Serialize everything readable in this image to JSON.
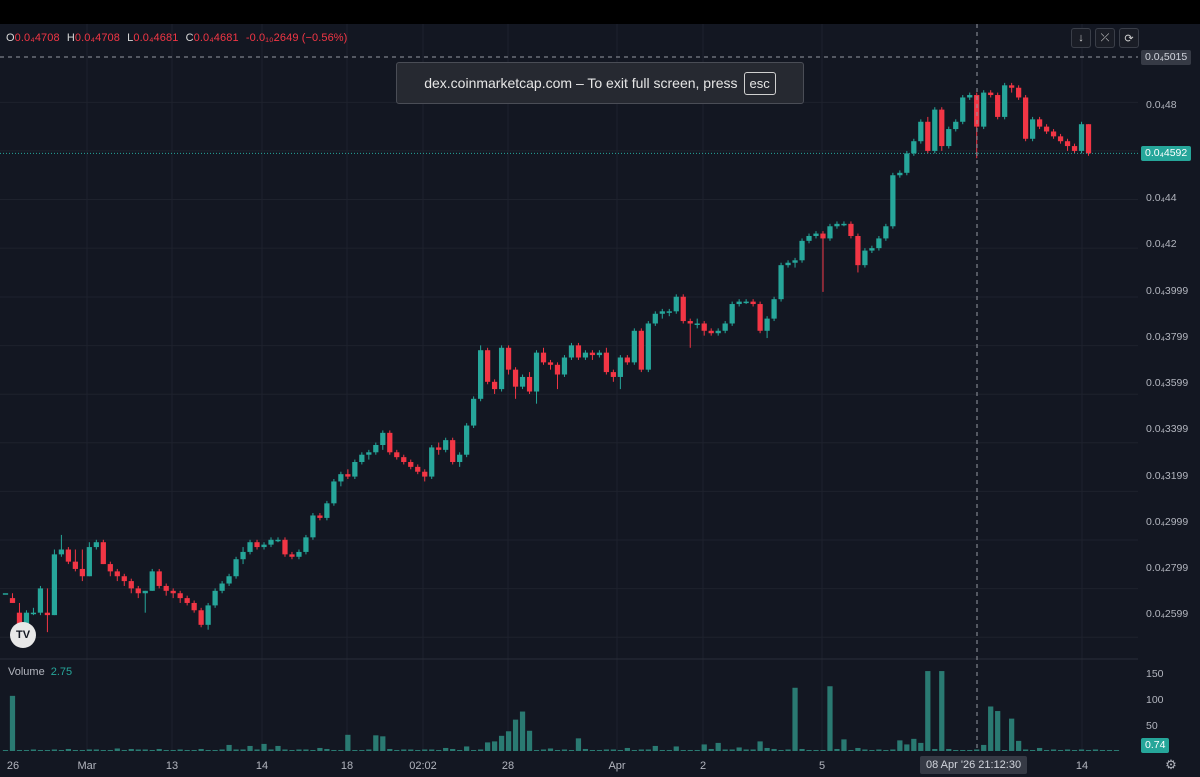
{
  "ohlc": {
    "o_label": "O",
    "o_value": "0.0₄4708",
    "h_label": "H",
    "h_value": "0.0₄4708",
    "l_label": "L",
    "l_value": "0.0₄4681",
    "c_label": "C",
    "c_value": "0.0₄4681",
    "change": "-0.0₁₀2649 (−0.56%)"
  },
  "toast": {
    "text": "dex.coinmarketcap.com – To exit full screen, press",
    "key": "esc"
  },
  "controls": {
    "down": "↓",
    "collapse": "⤫",
    "reset": "⟳"
  },
  "price_axis": {
    "labels": [
      "0.0₄48",
      "0.0₄46",
      "0.0₄44",
      "0.0₄42",
      "0.0₄3999",
      "0.0₄3799",
      "0.0₄3599",
      "0.0₄3399",
      "0.0₄3199",
      "0.0₄2999",
      "0.0₄2799",
      "0.0₄2599"
    ],
    "crosshair_price": "0.0₄5015",
    "last_price": "0.0₄4592"
  },
  "time_axis": {
    "labels": [
      "26",
      "Mar",
      "13",
      "14",
      "18",
      "02:02",
      "28",
      "Apr",
      "2",
      "5",
      "14"
    ],
    "crosshair_time": "08 Apr '26   21:12:30"
  },
  "volume": {
    "label": "Volume",
    "value": "2.75",
    "axis": [
      "150",
      "100",
      "50"
    ],
    "last": "0.74"
  },
  "colors": {
    "up": "#26a69a",
    "down": "#f23645",
    "bg": "#131722",
    "grid": "#1e222d",
    "volume": "#2a7a72"
  },
  "chart_data": {
    "type": "candlestick",
    "title": "",
    "ylim": [
      0.253,
      0.504
    ],
    "y_scale_note": "values in units of 0.0001 (display uses 0.0₄ subscript notation)",
    "candles": [
      [
        0.278,
        0.278,
        0.278,
        0.278
      ],
      [
        0.276,
        0.278,
        0.274,
        0.274
      ],
      [
        0.27,
        0.274,
        0.262,
        0.265
      ],
      [
        0.265,
        0.271,
        0.264,
        0.27
      ],
      [
        0.27,
        0.272,
        0.269,
        0.27
      ],
      [
        0.27,
        0.281,
        0.269,
        0.28
      ],
      [
        0.27,
        0.28,
        0.262,
        0.269
      ],
      [
        0.269,
        0.296,
        0.269,
        0.294
      ],
      [
        0.294,
        0.302,
        0.293,
        0.296
      ],
      [
        0.296,
        0.297,
        0.29,
        0.291
      ],
      [
        0.291,
        0.296,
        0.287,
        0.288
      ],
      [
        0.288,
        0.296,
        0.283,
        0.285
      ],
      [
        0.285,
        0.299,
        0.285,
        0.297
      ],
      [
        0.297,
        0.3,
        0.296,
        0.299
      ],
      [
        0.299,
        0.3,
        0.29,
        0.29
      ],
      [
        0.29,
        0.291,
        0.285,
        0.287
      ],
      [
        0.287,
        0.288,
        0.283,
        0.285
      ],
      [
        0.285,
        0.286,
        0.281,
        0.283
      ],
      [
        0.283,
        0.284,
        0.278,
        0.28
      ],
      [
        0.28,
        0.281,
        0.276,
        0.278
      ],
      [
        0.278,
        0.279,
        0.27,
        0.279
      ],
      [
        0.279,
        0.288,
        0.279,
        0.287
      ],
      [
        0.287,
        0.288,
        0.28,
        0.281
      ],
      [
        0.281,
        0.282,
        0.277,
        0.279
      ],
      [
        0.279,
        0.28,
        0.276,
        0.278
      ],
      [
        0.278,
        0.279,
        0.274,
        0.276
      ],
      [
        0.276,
        0.277,
        0.273,
        0.274
      ],
      [
        0.274,
        0.275,
        0.27,
        0.271
      ],
      [
        0.271,
        0.272,
        0.264,
        0.265
      ],
      [
        0.265,
        0.274,
        0.263,
        0.273
      ],
      [
        0.273,
        0.28,
        0.272,
        0.279
      ],
      [
        0.279,
        0.283,
        0.278,
        0.282
      ],
      [
        0.282,
        0.286,
        0.281,
        0.285
      ],
      [
        0.285,
        0.293,
        0.284,
        0.292
      ],
      [
        0.292,
        0.297,
        0.29,
        0.295
      ],
      [
        0.295,
        0.3,
        0.294,
        0.299
      ],
      [
        0.299,
        0.3,
        0.296,
        0.297
      ],
      [
        0.297,
        0.299,
        0.296,
        0.298
      ],
      [
        0.298,
        0.301,
        0.297,
        0.3
      ],
      [
        0.3,
        0.301,
        0.299,
        0.3
      ],
      [
        0.3,
        0.301,
        0.293,
        0.294
      ],
      [
        0.294,
        0.295,
        0.292,
        0.293
      ],
      [
        0.293,
        0.296,
        0.292,
        0.295
      ],
      [
        0.295,
        0.302,
        0.294,
        0.301
      ],
      [
        0.301,
        0.311,
        0.3,
        0.31
      ],
      [
        0.31,
        0.311,
        0.308,
        0.309
      ],
      [
        0.309,
        0.316,
        0.308,
        0.315
      ],
      [
        0.315,
        0.325,
        0.314,
        0.324
      ],
      [
        0.324,
        0.328,
        0.322,
        0.327
      ],
      [
        0.327,
        0.329,
        0.325,
        0.326
      ],
      [
        0.326,
        0.333,
        0.325,
        0.332
      ],
      [
        0.332,
        0.336,
        0.331,
        0.335
      ],
      [
        0.335,
        0.337,
        0.333,
        0.336
      ],
      [
        0.336,
        0.34,
        0.335,
        0.339
      ],
      [
        0.339,
        0.345,
        0.337,
        0.344
      ],
      [
        0.344,
        0.345,
        0.335,
        0.336
      ],
      [
        0.336,
        0.337,
        0.333,
        0.334
      ],
      [
        0.334,
        0.335,
        0.331,
        0.332
      ],
      [
        0.332,
        0.333,
        0.329,
        0.33
      ],
      [
        0.33,
        0.331,
        0.327,
        0.328
      ],
      [
        0.328,
        0.329,
        0.324,
        0.326
      ],
      [
        0.326,
        0.339,
        0.325,
        0.338
      ],
      [
        0.338,
        0.34,
        0.335,
        0.337
      ],
      [
        0.337,
        0.342,
        0.336,
        0.341
      ],
      [
        0.341,
        0.342,
        0.331,
        0.332
      ],
      [
        0.332,
        0.336,
        0.33,
        0.335
      ],
      [
        0.335,
        0.348,
        0.334,
        0.347
      ],
      [
        0.347,
        0.359,
        0.346,
        0.358
      ],
      [
        0.358,
        0.38,
        0.357,
        0.378
      ],
      [
        0.378,
        0.379,
        0.364,
        0.365
      ],
      [
        0.365,
        0.366,
        0.36,
        0.362
      ],
      [
        0.362,
        0.38,
        0.361,
        0.379
      ],
      [
        0.379,
        0.38,
        0.368,
        0.37
      ],
      [
        0.37,
        0.371,
        0.358,
        0.363
      ],
      [
        0.363,
        0.368,
        0.362,
        0.367
      ],
      [
        0.367,
        0.369,
        0.36,
        0.361
      ],
      [
        0.361,
        0.378,
        0.356,
        0.377
      ],
      [
        0.377,
        0.379,
        0.372,
        0.373
      ],
      [
        0.373,
        0.374,
        0.37,
        0.372
      ],
      [
        0.372,
        0.373,
        0.362,
        0.368
      ],
      [
        0.368,
        0.376,
        0.367,
        0.375
      ],
      [
        0.375,
        0.381,
        0.374,
        0.38
      ],
      [
        0.38,
        0.381,
        0.374,
        0.375
      ],
      [
        0.375,
        0.378,
        0.374,
        0.377
      ],
      [
        0.377,
        0.378,
        0.374,
        0.376
      ],
      [
        0.376,
        0.378,
        0.375,
        0.377
      ],
      [
        0.377,
        0.379,
        0.368,
        0.369
      ],
      [
        0.369,
        0.37,
        0.365,
        0.367
      ],
      [
        0.367,
        0.376,
        0.362,
        0.375
      ],
      [
        0.375,
        0.376,
        0.372,
        0.373
      ],
      [
        0.373,
        0.387,
        0.372,
        0.386
      ],
      [
        0.386,
        0.387,
        0.369,
        0.37
      ],
      [
        0.37,
        0.39,
        0.369,
        0.389
      ],
      [
        0.389,
        0.394,
        0.388,
        0.393
      ],
      [
        0.393,
        0.395,
        0.391,
        0.394
      ],
      [
        0.394,
        0.395,
        0.392,
        0.394
      ],
      [
        0.394,
        0.401,
        0.393,
        0.4
      ],
      [
        0.4,
        0.401,
        0.389,
        0.39
      ],
      [
        0.39,
        0.391,
        0.379,
        0.389
      ],
      [
        0.389,
        0.391,
        0.387,
        0.389
      ],
      [
        0.389,
        0.39,
        0.384,
        0.386
      ],
      [
        0.386,
        0.387,
        0.384,
        0.385
      ],
      [
        0.385,
        0.387,
        0.384,
        0.386
      ],
      [
        0.386,
        0.39,
        0.385,
        0.389
      ],
      [
        0.389,
        0.398,
        0.388,
        0.397
      ],
      [
        0.397,
        0.399,
        0.396,
        0.398
      ],
      [
        0.398,
        0.399,
        0.397,
        0.398
      ],
      [
        0.398,
        0.399,
        0.396,
        0.397
      ],
      [
        0.397,
        0.398,
        0.385,
        0.386
      ],
      [
        0.386,
        0.392,
        0.383,
        0.391
      ],
      [
        0.391,
        0.4,
        0.39,
        0.399
      ],
      [
        0.399,
        0.414,
        0.398,
        0.413
      ],
      [
        0.413,
        0.415,
        0.412,
        0.414
      ],
      [
        0.414,
        0.416,
        0.412,
        0.415
      ],
      [
        0.415,
        0.424,
        0.414,
        0.423
      ],
      [
        0.423,
        0.426,
        0.422,
        0.425
      ],
      [
        0.425,
        0.427,
        0.424,
        0.426
      ],
      [
        0.426,
        0.427,
        0.402,
        0.424
      ],
      [
        0.424,
        0.43,
        0.423,
        0.429
      ],
      [
        0.429,
        0.431,
        0.428,
        0.43
      ],
      [
        0.43,
        0.431,
        0.429,
        0.43
      ],
      [
        0.43,
        0.431,
        0.424,
        0.425
      ],
      [
        0.425,
        0.426,
        0.41,
        0.413
      ],
      [
        0.413,
        0.42,
        0.412,
        0.419
      ],
      [
        0.419,
        0.421,
        0.418,
        0.42
      ],
      [
        0.42,
        0.425,
        0.419,
        0.424
      ],
      [
        0.424,
        0.43,
        0.423,
        0.429
      ],
      [
        0.429,
        0.451,
        0.428,
        0.45
      ],
      [
        0.45,
        0.452,
        0.449,
        0.451
      ],
      [
        0.451,
        0.46,
        0.45,
        0.459
      ],
      [
        0.459,
        0.465,
        0.458,
        0.464
      ],
      [
        0.464,
        0.473,
        0.463,
        0.472
      ],
      [
        0.472,
        0.474,
        0.459,
        0.46
      ],
      [
        0.46,
        0.478,
        0.459,
        0.477
      ],
      [
        0.477,
        0.478,
        0.46,
        0.462
      ],
      [
        0.462,
        0.47,
        0.461,
        0.469
      ],
      [
        0.469,
        0.473,
        0.468,
        0.472
      ],
      [
        0.472,
        0.483,
        0.471,
        0.482
      ],
      [
        0.482,
        0.484,
        0.481,
        0.483
      ],
      [
        0.483,
        0.484,
        0.457,
        0.47
      ],
      [
        0.47,
        0.485,
        0.469,
        0.484
      ],
      [
        0.484,
        0.485,
        0.482,
        0.483
      ],
      [
        0.483,
        0.484,
        0.473,
        0.474
      ],
      [
        0.474,
        0.488,
        0.473,
        0.487
      ],
      [
        0.487,
        0.488,
        0.484,
        0.486
      ],
      [
        0.486,
        0.487,
        0.481,
        0.482
      ],
      [
        0.482,
        0.483,
        0.464,
        0.465
      ],
      [
        0.465,
        0.474,
        0.464,
        0.473
      ],
      [
        0.473,
        0.474,
        0.469,
        0.47
      ],
      [
        0.47,
        0.471,
        0.467,
        0.468
      ],
      [
        0.468,
        0.469,
        0.465,
        0.466
      ],
      [
        0.466,
        0.467,
        0.463,
        0.464
      ],
      [
        0.464,
        0.465,
        0.46,
        0.462
      ],
      [
        0.462,
        0.463,
        0.459,
        0.46
      ],
      [
        0.46,
        0.472,
        0.459,
        0.471
      ],
      [
        0.471,
        0.471,
        0.458,
        0.459
      ]
    ],
    "volume": [
      2,
      109,
      2,
      2,
      3,
      2,
      2,
      3,
      2,
      4,
      2,
      2,
      3,
      3,
      2,
      2,
      5,
      2,
      4,
      3,
      3,
      2,
      4,
      2,
      2,
      3,
      2,
      2,
      4,
      2,
      2,
      3,
      12,
      3,
      3,
      10,
      3,
      14,
      3,
      10,
      3,
      2,
      3,
      3,
      2,
      6,
      4,
      2,
      2,
      32,
      2,
      2,
      3,
      31,
      29,
      4,
      2,
      3,
      3,
      2,
      3,
      3,
      2,
      6,
      4,
      2,
      9,
      2,
      3,
      17,
      19,
      30,
      39,
      62,
      78,
      40,
      2,
      3,
      5,
      2,
      3,
      2,
      25,
      4,
      2,
      2,
      3,
      3,
      2,
      6,
      2,
      3,
      3,
      10,
      2,
      2,
      9,
      2,
      2,
      2,
      13,
      4,
      16,
      3,
      3,
      7,
      3,
      3,
      19,
      6,
      4,
      2,
      3,
      125,
      4,
      2,
      2,
      2,
      128,
      4,
      23,
      2,
      6,
      3,
      2,
      3,
      2,
      3,
      21,
      13,
      24,
      16,
      158,
      4,
      158,
      4,
      2,
      2,
      2,
      3,
      12,
      88,
      79,
      2,
      64,
      20,
      3,
      2,
      6,
      2,
      3,
      2,
      3,
      2,
      3,
      2,
      3,
      2,
      2,
      2
    ],
    "volume_ylim": [
      0,
      170
    ]
  }
}
